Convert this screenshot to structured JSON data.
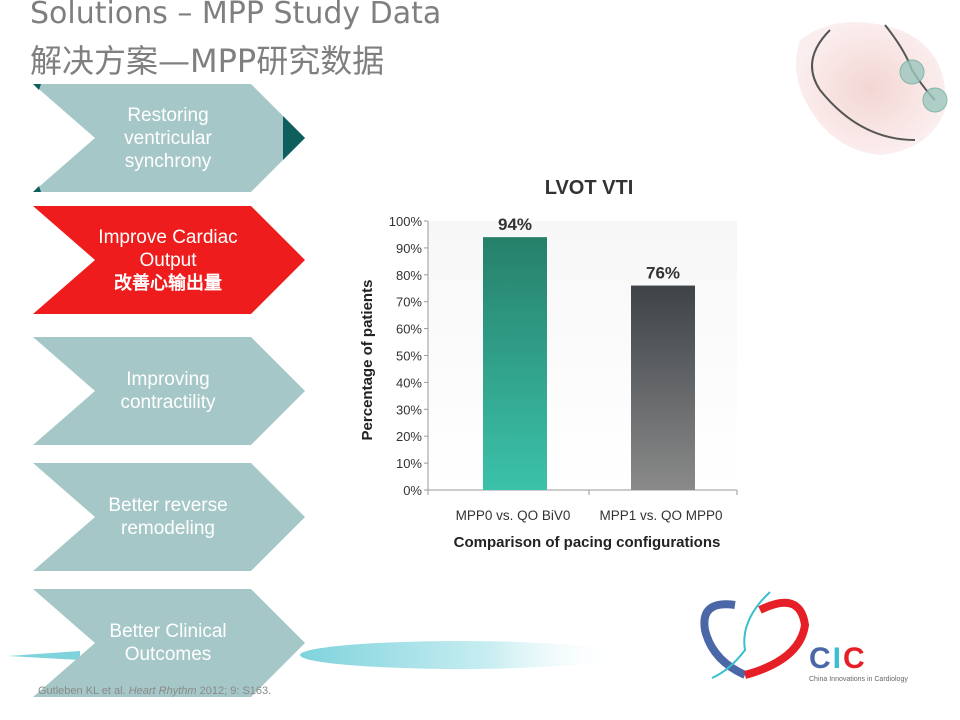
{
  "title_en": "Solutions – MPP Study Data",
  "title_cn": "解决方案—MPP研究数据",
  "steps": [
    {
      "lines": [
        "Restoring",
        "ventricular",
        "synchrony"
      ],
      "cn": "",
      "active": false
    },
    {
      "lines": [
        "Improve Cardiac",
        "Output"
      ],
      "cn": "改善心输出量",
      "active": true
    },
    {
      "lines": [
        "Improving",
        "contractility"
      ],
      "cn": "",
      "active": false
    },
    {
      "lines": [
        "Better reverse",
        "remodeling"
      ],
      "cn": "",
      "active": false
    },
    {
      "lines": [
        "Better Clinical",
        "Outcomes"
      ],
      "cn": "",
      "active": false
    }
  ],
  "colors": {
    "step": "#a6c7c7",
    "active": "#ee1c1c",
    "accent": "#0f5e5e",
    "bar1_top": "#26806a",
    "bar1_bottom": "#3cc2aa",
    "bar2_top": "#3e4347",
    "bar2_bottom": "#8a8a8a"
  },
  "chart_data": {
    "type": "bar",
    "title": "LVOT VTI",
    "categories": [
      "MPP0 vs. QO BiV0",
      "MPP1 vs. QO MPP0"
    ],
    "values": [
      94,
      76
    ],
    "data_labels": [
      "94%",
      "76%"
    ],
    "xlabel": "Comparison of pacing configurations",
    "ylabel": "Percentage of patients",
    "ylim": [
      0,
      100
    ],
    "yticks": [
      "0%",
      "10%",
      "20%",
      "30%",
      "40%",
      "50%",
      "60%",
      "70%",
      "80%",
      "90%",
      "100%"
    ],
    "grid": false
  },
  "citation": {
    "authors": "Gutleben KL et al. ",
    "journal": "Heart Rhythm",
    "rest": " 2012; 9: S163."
  },
  "logo": {
    "name": "CIC",
    "subtitle": "China Innovations in Cardiology"
  }
}
